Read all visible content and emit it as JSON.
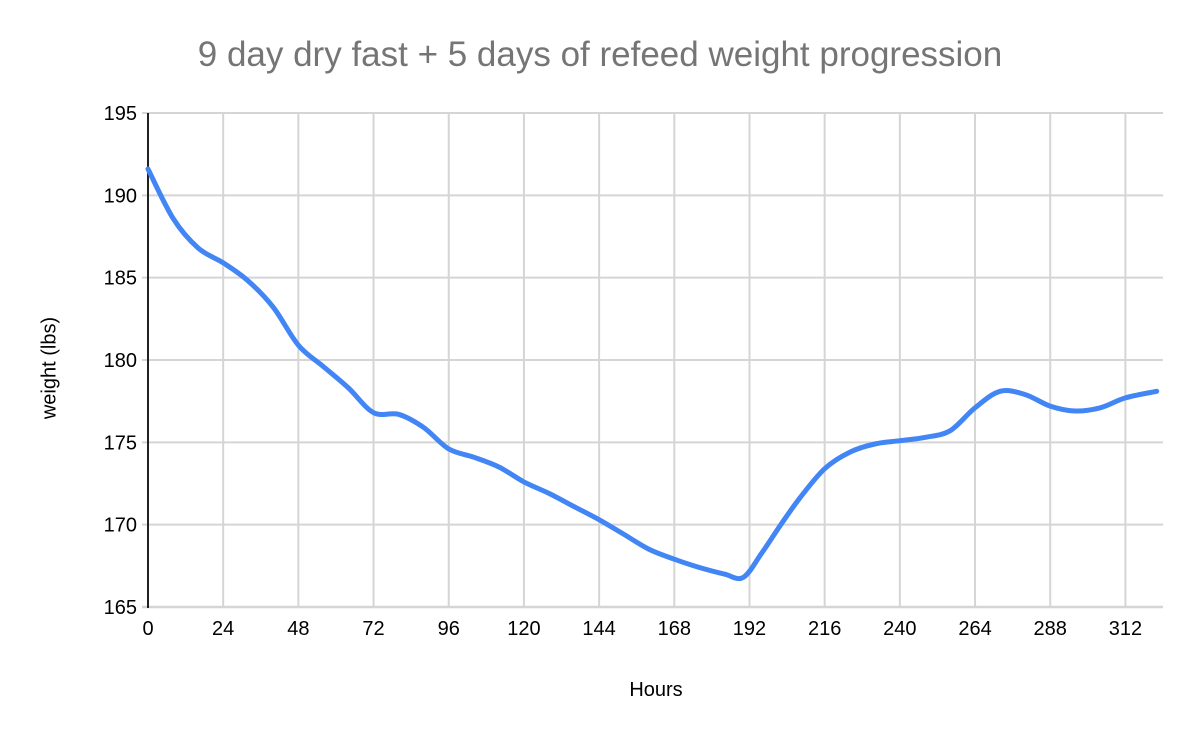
{
  "chart_data": {
    "type": "line",
    "title": "9 day dry fast + 5 days of refeed weight progression",
    "xlabel": "Hours",
    "ylabel": "weight (lbs)",
    "x_ticks": [
      0,
      24,
      48,
      72,
      96,
      120,
      144,
      168,
      192,
      216,
      240,
      264,
      288,
      312
    ],
    "y_ticks": [
      165,
      170,
      175,
      180,
      185,
      190,
      195
    ],
    "xlim": [
      0,
      324
    ],
    "ylim": [
      165,
      195
    ],
    "grid": true,
    "legend": "none",
    "smooth": true,
    "markers": false,
    "series": [
      {
        "name": "weight",
        "points": [
          [
            0,
            191.6
          ],
          [
            8,
            188.6
          ],
          [
            16,
            186.8
          ],
          [
            24,
            185.9
          ],
          [
            32,
            184.8
          ],
          [
            40,
            183.2
          ],
          [
            48,
            180.9
          ],
          [
            56,
            179.6
          ],
          [
            64,
            178.3
          ],
          [
            72,
            176.8
          ],
          [
            80,
            176.7
          ],
          [
            88,
            175.9
          ],
          [
            96,
            174.6
          ],
          [
            104,
            174.1
          ],
          [
            112,
            173.5
          ],
          [
            120,
            172.6
          ],
          [
            128,
            171.9
          ],
          [
            136,
            171.1
          ],
          [
            144,
            170.3
          ],
          [
            152,
            169.4
          ],
          [
            160,
            168.5
          ],
          [
            168,
            167.9
          ],
          [
            176,
            167.4
          ],
          [
            184,
            167.0
          ],
          [
            190,
            166.8
          ],
          [
            196,
            168.3
          ],
          [
            202,
            170.0
          ],
          [
            208,
            171.6
          ],
          [
            216,
            173.4
          ],
          [
            224,
            174.4
          ],
          [
            232,
            174.9
          ],
          [
            240,
            175.1
          ],
          [
            248,
            175.3
          ],
          [
            256,
            175.7
          ],
          [
            264,
            177.1
          ],
          [
            272,
            178.1
          ],
          [
            280,
            177.9
          ],
          [
            288,
            177.2
          ],
          [
            296,
            176.9
          ],
          [
            304,
            177.1
          ],
          [
            312,
            177.7
          ],
          [
            322,
            178.1
          ]
        ]
      }
    ],
    "colors": {
      "line": "#4285f4",
      "grid": "#d5d5d5",
      "y_axis": "#212121",
      "baseline": "#d5d5d5",
      "title_text": "#757575",
      "tick_text": "#000000",
      "axis_title_text": "#000000",
      "background": "#ffffff"
    }
  }
}
